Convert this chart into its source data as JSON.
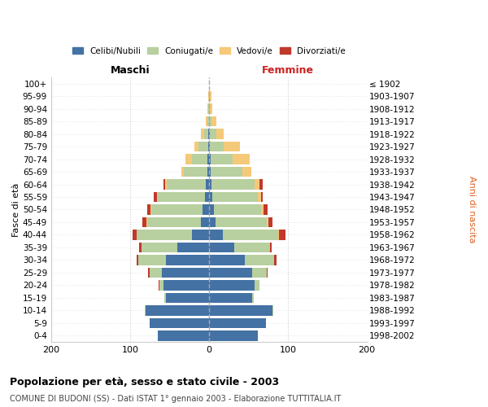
{
  "age_groups": [
    "0-4",
    "5-9",
    "10-14",
    "15-19",
    "20-24",
    "25-29",
    "30-34",
    "35-39",
    "40-44",
    "45-49",
    "50-54",
    "55-59",
    "60-64",
    "65-69",
    "70-74",
    "75-79",
    "80-84",
    "85-89",
    "90-94",
    "95-99",
    "100+"
  ],
  "birth_years": [
    "1998-2002",
    "1993-1997",
    "1988-1992",
    "1983-1987",
    "1978-1982",
    "1973-1977",
    "1968-1972",
    "1963-1967",
    "1958-1962",
    "1953-1957",
    "1948-1952",
    "1943-1947",
    "1938-1942",
    "1933-1937",
    "1928-1932",
    "1923-1927",
    "1918-1922",
    "1913-1917",
    "1908-1912",
    "1903-1907",
    "≤ 1902"
  ],
  "male_celibi": [
    65,
    75,
    80,
    55,
    58,
    60,
    55,
    40,
    22,
    10,
    8,
    5,
    4,
    2,
    2,
    1,
    1,
    0,
    0,
    0,
    0
  ],
  "male_coniugati": [
    0,
    0,
    1,
    2,
    5,
    15,
    35,
    45,
    70,
    68,
    65,
    60,
    50,
    30,
    20,
    12,
    5,
    2,
    1,
    0,
    0
  ],
  "male_vedovi": [
    0,
    0,
    0,
    0,
    0,
    0,
    0,
    0,
    0,
    1,
    1,
    1,
    2,
    3,
    8,
    6,
    4,
    2,
    1,
    1,
    0
  ],
  "male_divorziati": [
    0,
    0,
    0,
    0,
    1,
    2,
    2,
    4,
    5,
    5,
    4,
    4,
    2,
    0,
    0,
    0,
    0,
    0,
    0,
    0,
    0
  ],
  "female_celibi": [
    62,
    72,
    80,
    55,
    58,
    55,
    45,
    32,
    18,
    8,
    6,
    4,
    3,
    2,
    2,
    1,
    1,
    0,
    0,
    0,
    0
  ],
  "female_coniugati": [
    0,
    0,
    1,
    2,
    6,
    18,
    38,
    45,
    70,
    65,
    60,
    58,
    55,
    40,
    28,
    18,
    8,
    3,
    1,
    1,
    0
  ],
  "female_vedovi": [
    0,
    0,
    0,
    0,
    0,
    0,
    0,
    0,
    1,
    2,
    3,
    4,
    6,
    12,
    22,
    20,
    10,
    6,
    3,
    2,
    0
  ],
  "female_divorziati": [
    0,
    0,
    0,
    0,
    0,
    1,
    3,
    2,
    8,
    5,
    5,
    2,
    4,
    0,
    0,
    0,
    0,
    0,
    0,
    0,
    0
  ],
  "color_celibi": "#4472a4",
  "color_coniugati": "#b8cfa0",
  "color_vedovi": "#f5c97a",
  "color_divorziati": "#c0392b",
  "title_main": "Popolazione per età, sesso e stato civile - 2003",
  "title_sub": "COMUNE DI BUDONI (SS) - Dati ISTAT 1° gennaio 2003 - Elaborazione TUTTITALIA.IT",
  "label_maschi": "Maschi",
  "label_femmine": "Femmine",
  "ylabel_left": "Fasce di età",
  "ylabel_right": "Anni di nascita",
  "xlim": 200,
  "xticks": [
    -200,
    -100,
    0,
    100,
    200
  ],
  "xticklabels": [
    "200",
    "100",
    "0",
    "100",
    "200"
  ]
}
